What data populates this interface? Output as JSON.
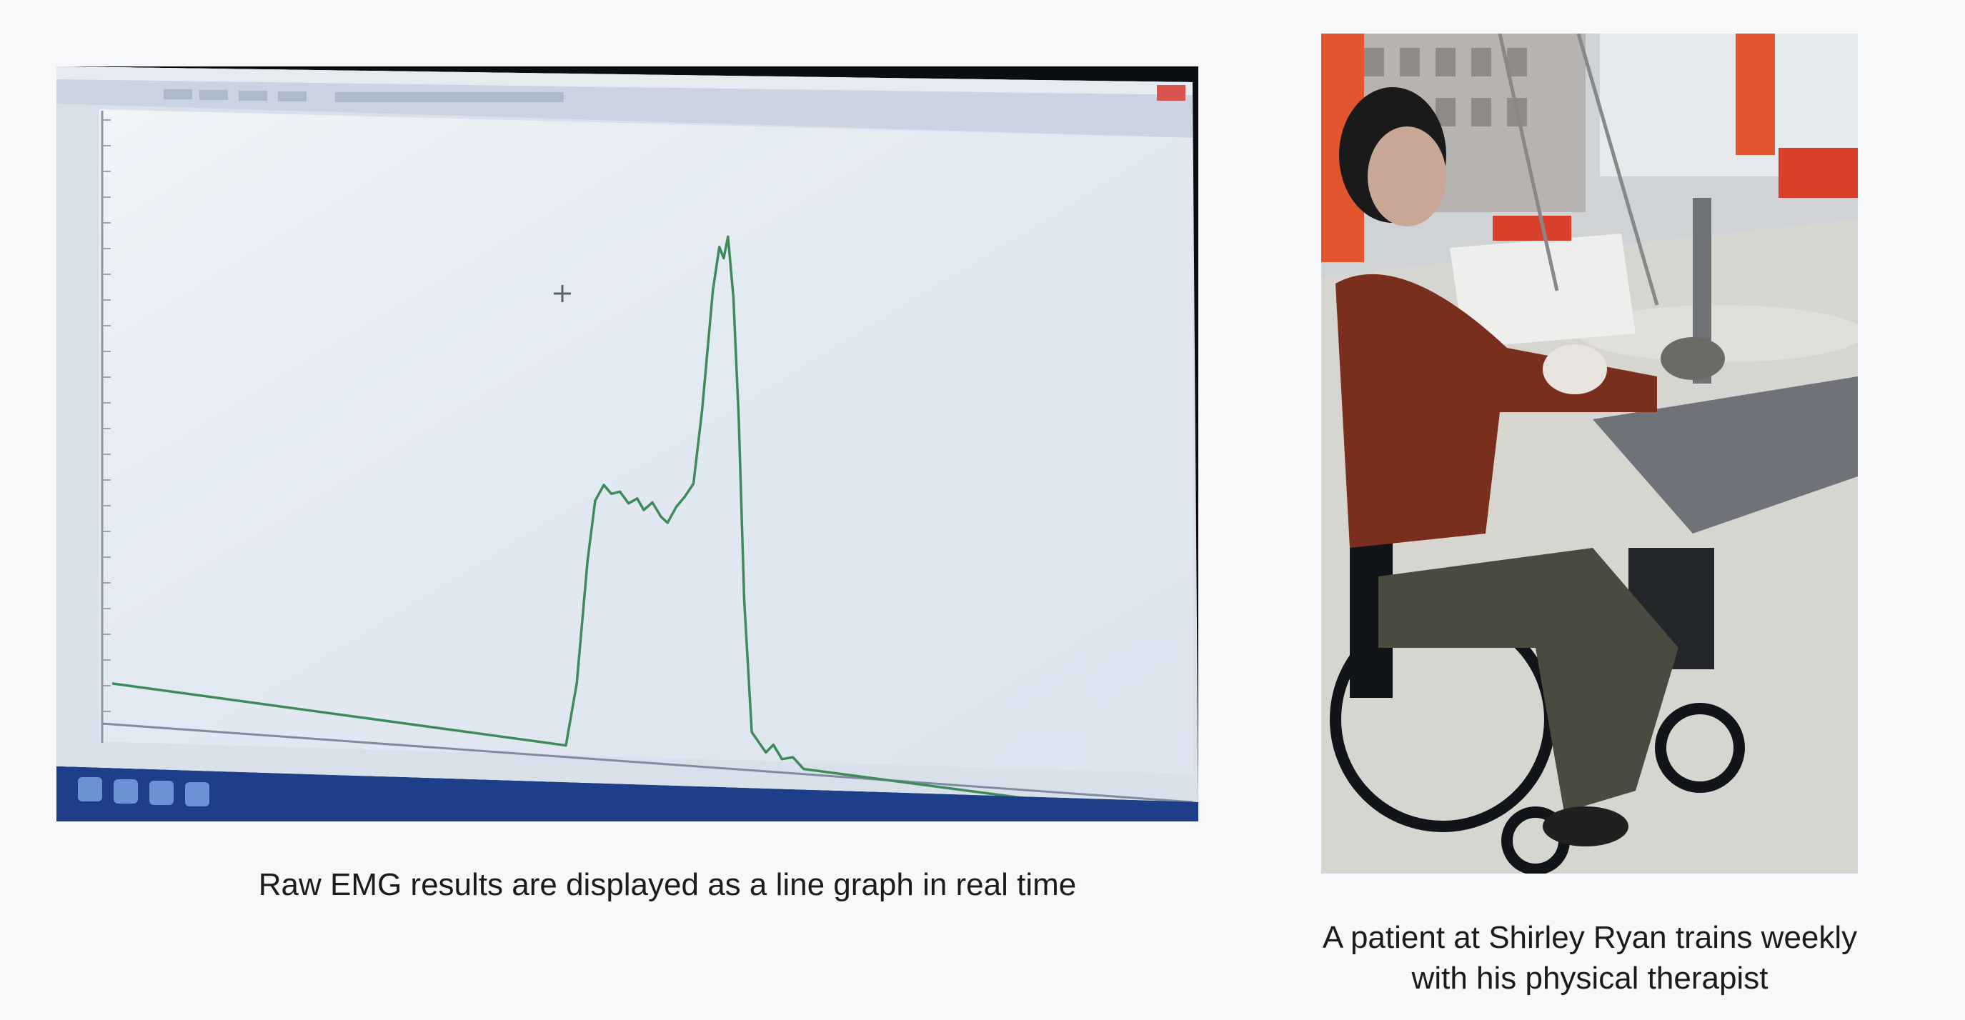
{
  "figure": {
    "left_caption": "Raw EMG results are displayed as a line graph in real time",
    "right_caption": {
      "line1": "A patient at Shirley Ryan trains weekly",
      "line2": "with his physical therapist"
    }
  },
  "colors": {
    "page_background": "#f7f8fa",
    "caption_text": "#1b1b1b",
    "emg_trace": "#3f8a5c",
    "screen_background": "#d8e0ea",
    "sweater": "#7a2e1e",
    "pillar_orange": "#e2552e",
    "wheelchair": "#111418"
  },
  "chart_data": {
    "type": "line",
    "title": "",
    "xlabel": "",
    "ylabel": "",
    "series": [
      {
        "x": [
          0,
          420,
          430,
          440,
          447,
          455,
          462,
          470,
          478,
          486,
          492,
          500,
          508,
          514,
          522,
          530,
          538,
          546,
          556,
          562,
          566,
          570,
          575,
          580,
          585,
          592,
          605,
          612,
          620,
          630,
          640,
          1000
        ],
        "values": [
          0.12,
          0.02,
          0.25,
          0.7,
          0.92,
          0.98,
          0.95,
          0.96,
          0.92,
          0.94,
          0.9,
          0.93,
          0.88,
          0.86,
          0.92,
          0.96,
          1.01,
          1.28,
          1.72,
          1.88,
          1.84,
          1.92,
          1.7,
          1.25,
          0.6,
          0.12,
          0.05,
          0.08,
          0.03,
          0.04,
          0.0,
          -0.08
        ]
      }
    ]
  }
}
